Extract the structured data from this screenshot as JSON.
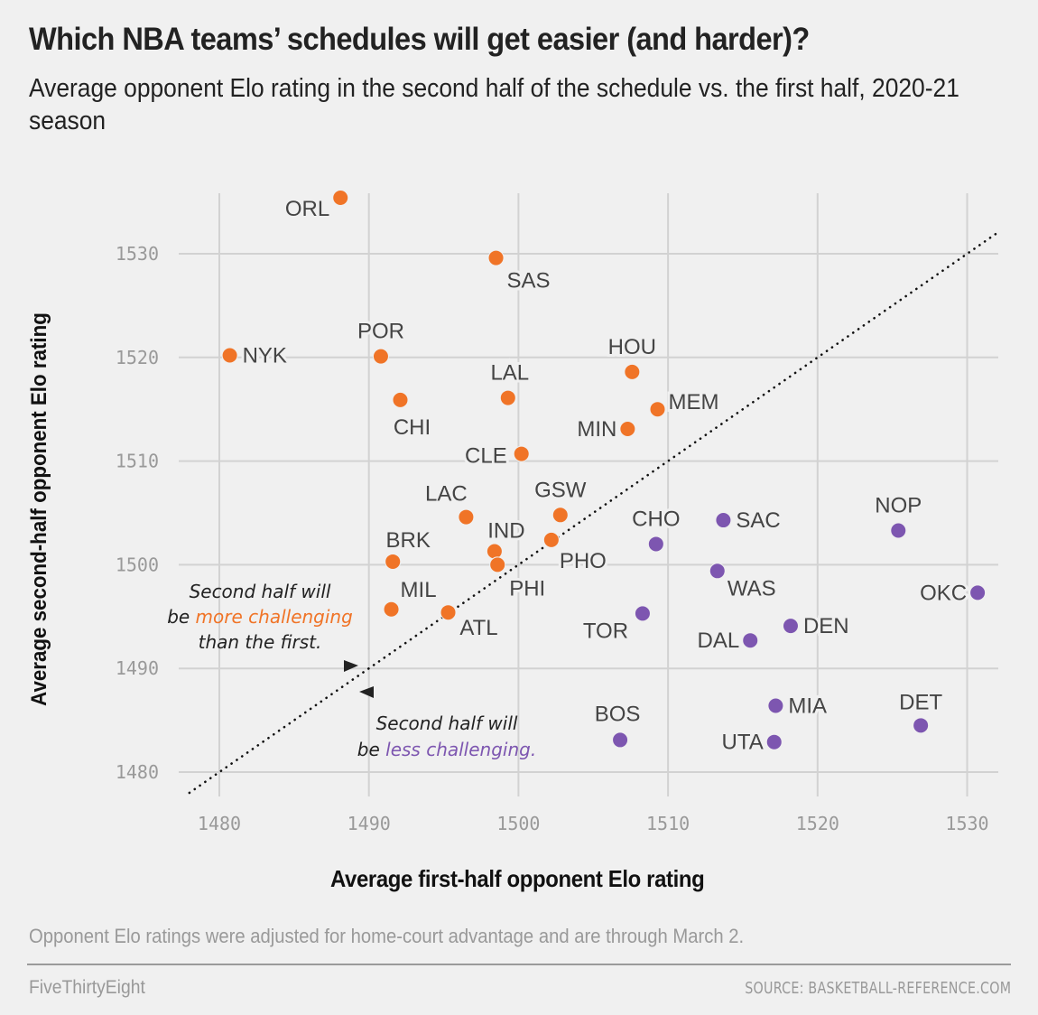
{
  "header": {
    "title": "Which NBA teams’ schedules will get easier (and harder)?",
    "subtitle": "Average opponent Elo rating in the second half of the schedule vs. the first half, 2020-21 season"
  },
  "footer": {
    "note": "Opponent Elo ratings were adjusted for home-court advantage and are through March 2.",
    "brand": "FiveThirtyEight",
    "source": "SOURCE: BASKETBALL-REFERENCE.COM"
  },
  "colors": {
    "harder": "#f07427",
    "easier": "#7d56b0",
    "grid": "#d2d2d2",
    "background": "#f0f0f0"
  },
  "chart_data": {
    "type": "scatter",
    "title": "Which NBA teams’ schedules will get easier (and harder)?",
    "xlabel": "Average first-half opponent Elo rating",
    "ylabel": "Average second-half opponent Elo rating",
    "xlim": [
      1477.9,
      1531.5
    ],
    "ylim": [
      1477.8,
      1536.0
    ],
    "xticks": [
      1480,
      1490,
      1500,
      1510,
      1520,
      1530
    ],
    "yticks": [
      1480,
      1490,
      1500,
      1510,
      1520,
      1530
    ],
    "grid": true,
    "reference_line": {
      "type": "y=x",
      "style": "dotted"
    },
    "annotations": [
      {
        "id": "above",
        "lines": [
          [
            "Second half will"
          ],
          [
            "be ",
            "more challenging"
          ],
          [
            "than the first."
          ]
        ],
        "highlight": "more challenging",
        "color_key": "harder"
      },
      {
        "id": "below",
        "lines": [
          [
            "Second half will"
          ],
          [
            "be ",
            "less challenging."
          ]
        ],
        "highlight": "less challenging.",
        "color_key": "easier"
      }
    ],
    "series": [
      {
        "name": "Second half harder",
        "color_key": "harder",
        "points": [
          {
            "team": "ORL",
            "x": 1488.1,
            "y": 1535.4,
            "label_pos": "left"
          },
          {
            "team": "SAS",
            "x": 1498.5,
            "y": 1529.6,
            "label_pos": "below-right"
          },
          {
            "team": "NYK",
            "x": 1480.7,
            "y": 1520.2,
            "label_pos": "right"
          },
          {
            "team": "POR",
            "x": 1490.8,
            "y": 1520.1,
            "label_pos": "above"
          },
          {
            "team": "CHI",
            "x": 1492.1,
            "y": 1515.9,
            "label_pos": "below-right"
          },
          {
            "team": "LAL",
            "x": 1499.3,
            "y": 1516.1,
            "label_pos": "above"
          },
          {
            "team": "HOU",
            "x": 1507.6,
            "y": 1518.6,
            "label_pos": "above"
          },
          {
            "team": "MEM",
            "x": 1509.3,
            "y": 1515.0,
            "label_pos": "right-up"
          },
          {
            "team": "MIN",
            "x": 1507.3,
            "y": 1513.1,
            "label_pos": "left"
          },
          {
            "team": "CLE",
            "x": 1500.2,
            "y": 1510.7,
            "label_pos": "left"
          },
          {
            "team": "LAC",
            "x": 1496.5,
            "y": 1504.6,
            "label_pos": "above-left"
          },
          {
            "team": "GSW",
            "x": 1502.8,
            "y": 1504.8,
            "label_pos": "above"
          },
          {
            "team": "IND",
            "x": 1498.4,
            "y": 1501.3,
            "label_pos": "above-right"
          },
          {
            "team": "PHO",
            "x": 1502.2,
            "y": 1502.4,
            "label_pos": "below-right"
          },
          {
            "team": "PHI",
            "x": 1498.6,
            "y": 1500.0,
            "label_pos": "below-right"
          },
          {
            "team": "BRK",
            "x": 1491.6,
            "y": 1500.3,
            "label_pos": "above-right"
          },
          {
            "team": "MIL",
            "x": 1491.5,
            "y": 1495.7,
            "label_pos": "above-right"
          },
          {
            "team": "ATL",
            "x": 1495.3,
            "y": 1495.4,
            "label_pos": "below-right"
          }
        ]
      },
      {
        "name": "Second half easier",
        "color_key": "easier",
        "points": [
          {
            "team": "CHO",
            "x": 1509.2,
            "y": 1502.0,
            "label_pos": "above"
          },
          {
            "team": "SAC",
            "x": 1513.7,
            "y": 1504.3,
            "label_pos": "right"
          },
          {
            "team": "WAS",
            "x": 1513.3,
            "y": 1499.4,
            "label_pos": "below-right"
          },
          {
            "team": "NOP",
            "x": 1525.4,
            "y": 1503.3,
            "label_pos": "above"
          },
          {
            "team": "OKC",
            "x": 1530.7,
            "y": 1497.3,
            "label_pos": "left"
          },
          {
            "team": "TOR",
            "x": 1508.3,
            "y": 1495.3,
            "label_pos": "below-left"
          },
          {
            "team": "DAL",
            "x": 1515.5,
            "y": 1492.7,
            "label_pos": "left"
          },
          {
            "team": "DEN",
            "x": 1518.2,
            "y": 1494.1,
            "label_pos": "right"
          },
          {
            "team": "MIA",
            "x": 1517.2,
            "y": 1486.4,
            "label_pos": "right"
          },
          {
            "team": "UTA",
            "x": 1517.1,
            "y": 1482.9,
            "label_pos": "left"
          },
          {
            "team": "DET",
            "x": 1526.9,
            "y": 1484.5,
            "label_pos": "above"
          },
          {
            "team": "BOS",
            "x": 1506.8,
            "y": 1483.1,
            "label_pos": "above"
          }
        ]
      }
    ]
  }
}
